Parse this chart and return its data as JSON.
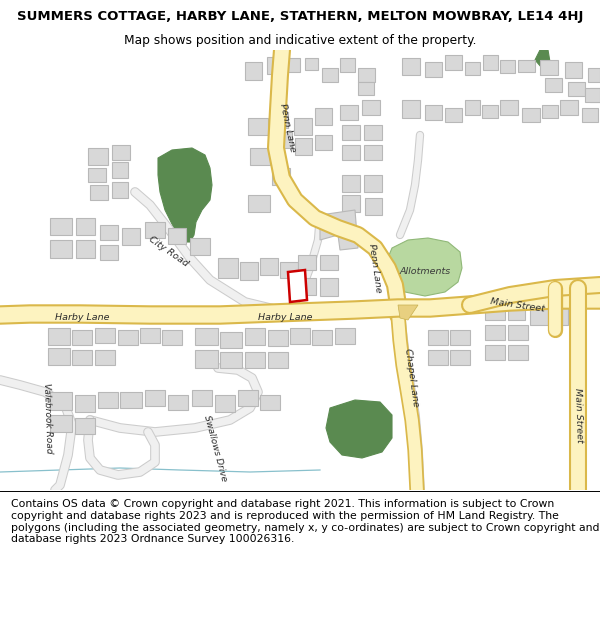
{
  "title_line1": "SUMMERS COTTAGE, HARBY LANE, STATHERN, MELTON MOWBRAY, LE14 4HJ",
  "title_line2": "Map shows position and indicative extent of the property.",
  "footer_text": "Contains OS data © Crown copyright and database right 2021. This information is subject to Crown copyright and database rights 2023 and is reproduced with the permission of HM Land Registry. The polygons (including the associated geometry, namely x, y co-ordinates) are subject to Crown copyright and database rights 2023 Ordnance Survey 100026316.",
  "map_bg": "#f5f5f5",
  "road_fill": "#fdf3c0",
  "road_stroke": "#dab84a",
  "building_fill": "#d8d8d8",
  "building_stroke": "#b8b8b8",
  "green_dark": "#5a8a50",
  "green_light": "#b8d8a0",
  "green_light_stroke": "#90b878",
  "highlight_stroke": "#cc0000",
  "highlight_fill": "#ffffff",
  "minor_road_outer": "#cccccc",
  "minor_road_inner": "#f0f0f0",
  "blue_line": "#88c0cc",
  "title_fontsize": 9.5,
  "subtitle_fontsize": 8.8,
  "footer_fontsize": 7.8,
  "label_fontsize": 6.8
}
